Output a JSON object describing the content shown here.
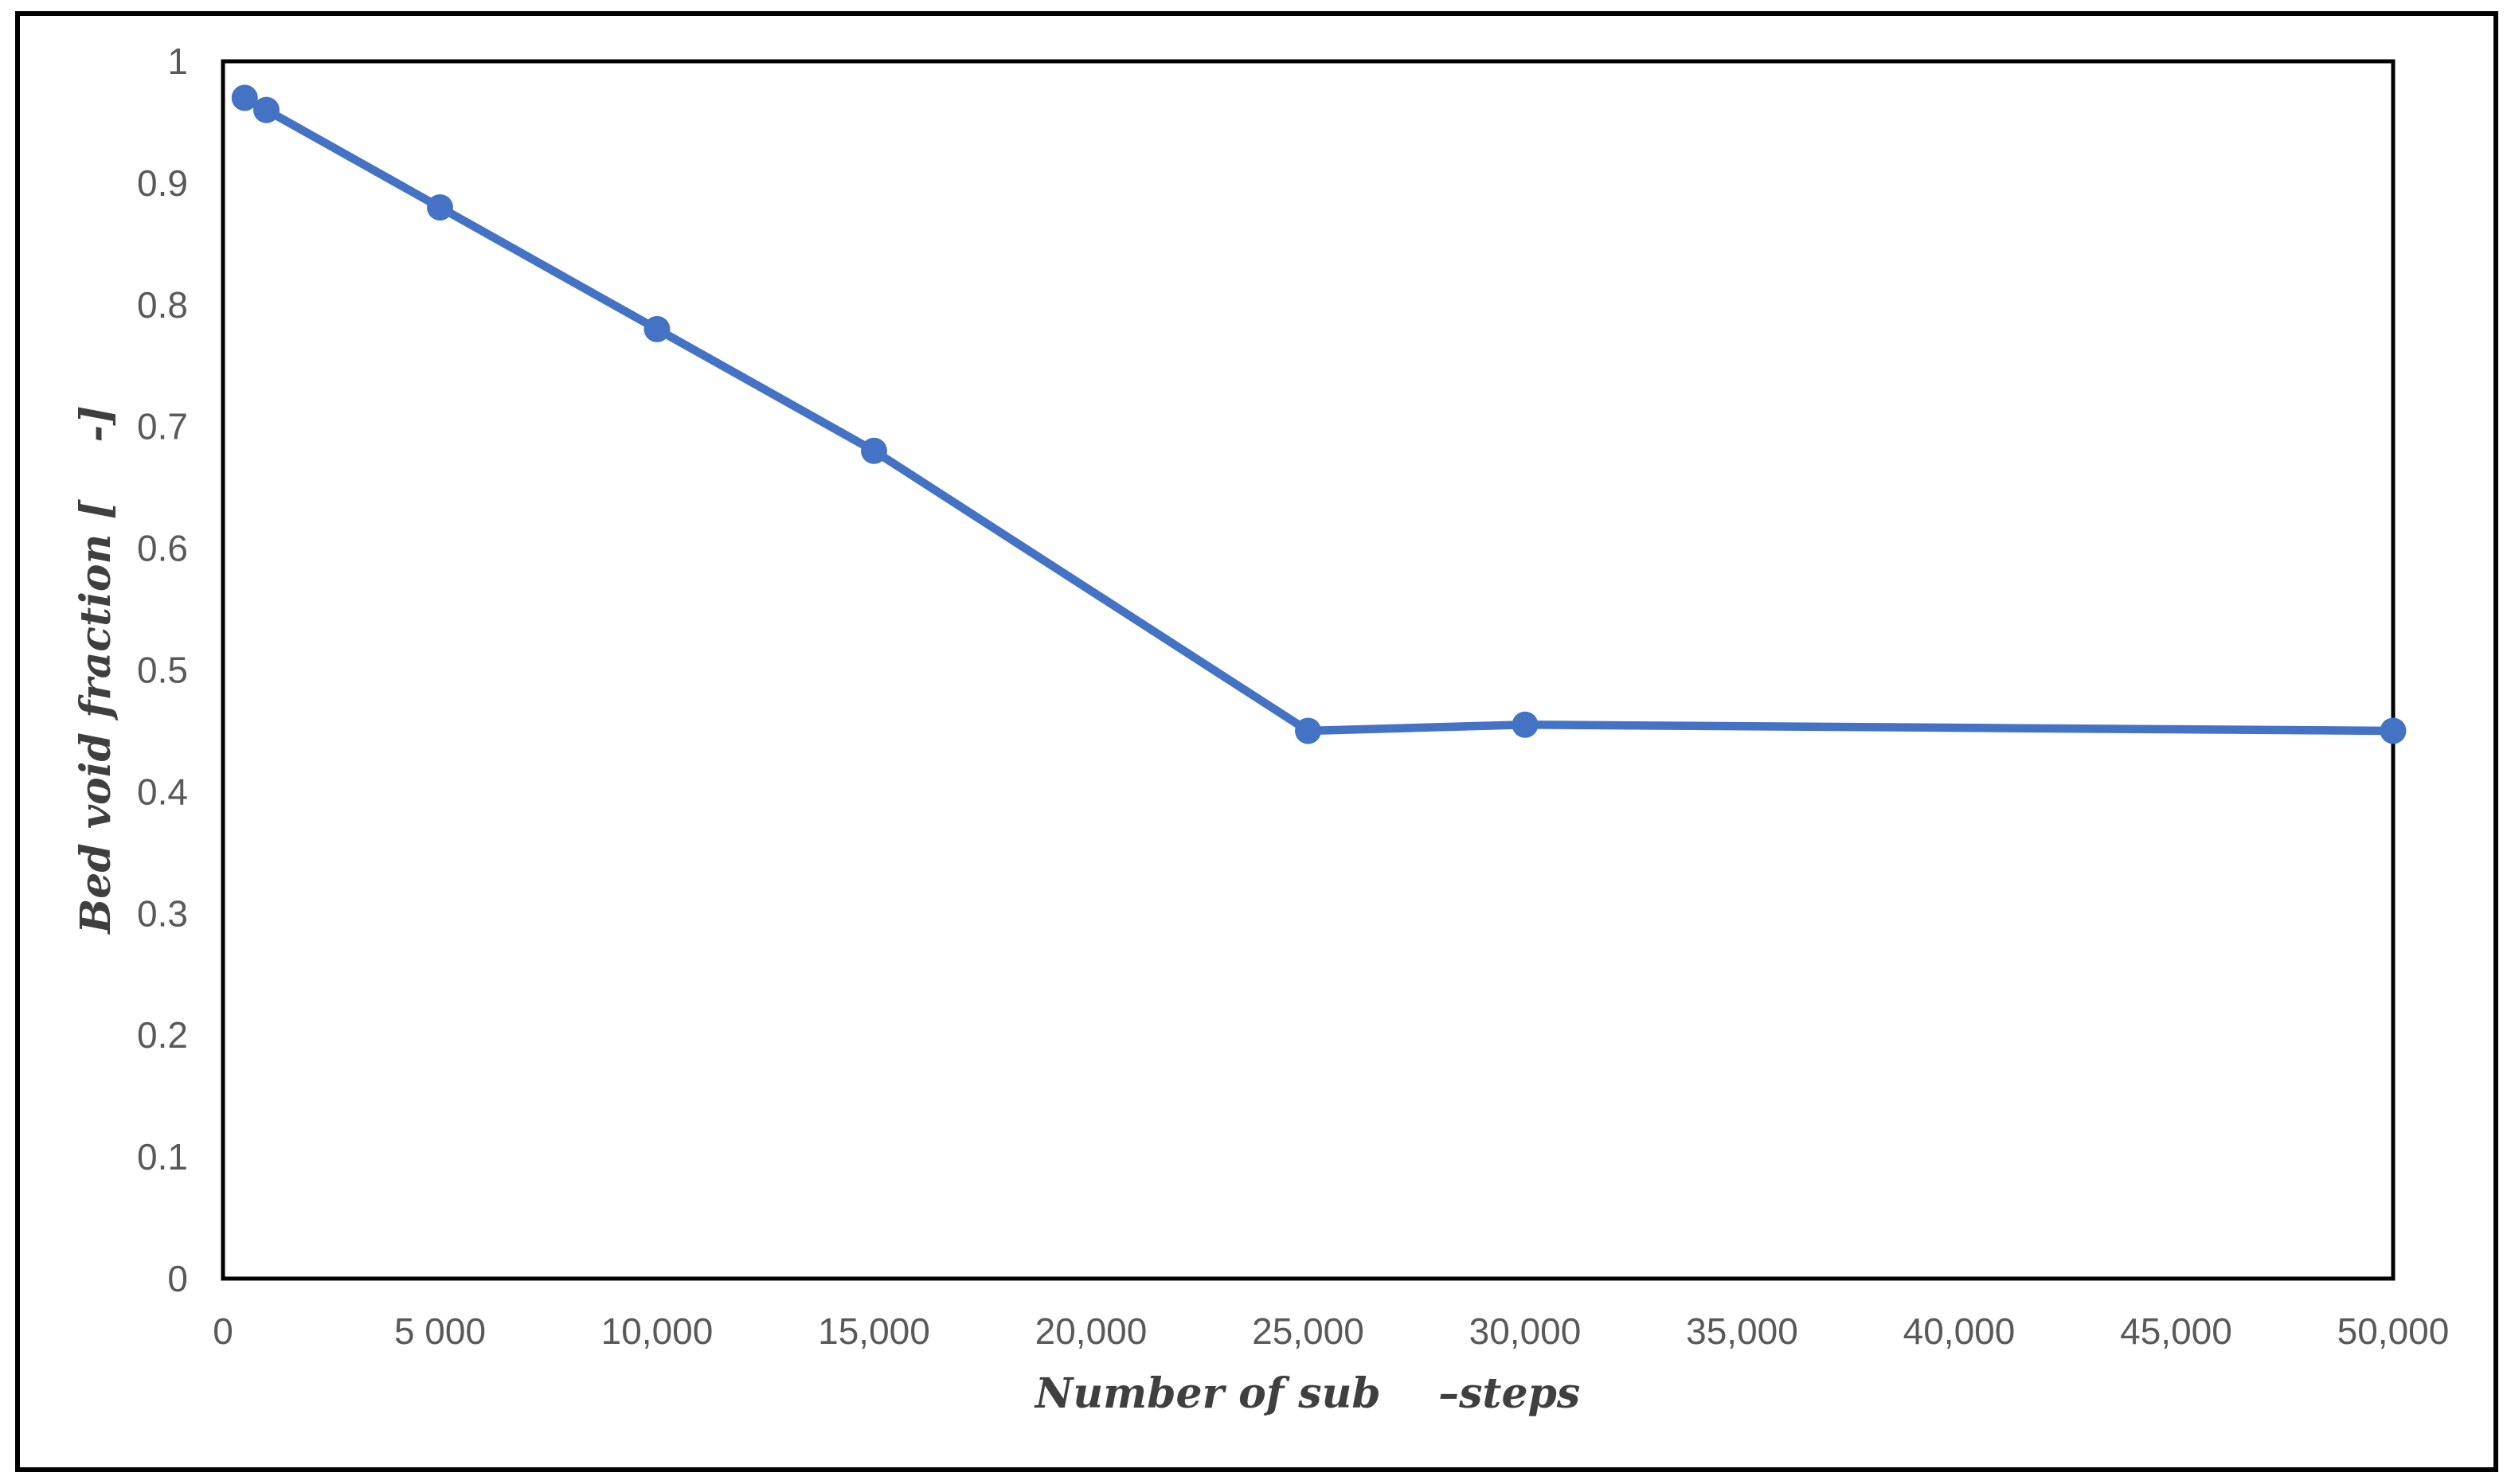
{
  "chart_data": {
    "type": "line",
    "title": "",
    "xlabel": "Number of sub    –steps",
    "ylabel": "Bed void fraction [    -]",
    "series": [
      {
        "name": "Bed void fraction",
        "x": [
          500,
          1000,
          5000,
          10000,
          15000,
          25000,
          30000,
          50000
        ],
        "y": [
          0.97,
          0.96,
          0.88,
          0.78,
          0.68,
          0.45,
          0.455,
          0.45
        ]
      }
    ],
    "xlim": [
      0,
      50000
    ],
    "ylim": [
      0,
      1
    ],
    "x_tick_values": [
      0,
      5000,
      10000,
      15000,
      20000,
      25000,
      30000,
      35000,
      40000,
      45000,
      50000
    ],
    "x_tick_labels": [
      "0",
      "5 000",
      "10,000",
      "15,000",
      "20,000",
      "25,000",
      "30,000",
      "35,000",
      "40,000",
      "45,000",
      "50,000"
    ],
    "y_tick_values": [
      0,
      0.1,
      0.2,
      0.3,
      0.4,
      0.5,
      0.6,
      0.7,
      0.8,
      0.9,
      1
    ],
    "y_tick_labels": [
      "0",
      "0.1",
      "0.2",
      "0.3",
      "0.4",
      "0.5",
      "0.6",
      "0.7",
      "0.8",
      "0.9",
      "1"
    ],
    "grid": false,
    "legend": false,
    "marker": "circle",
    "colors": {
      "line": "#4472C4",
      "marker": "#4472C4",
      "tick_label": "#595959",
      "axis_title": "#3f3f3f",
      "plot_border": "#000000",
      "figure_border": "#000000",
      "background": "#ffffff"
    }
  }
}
